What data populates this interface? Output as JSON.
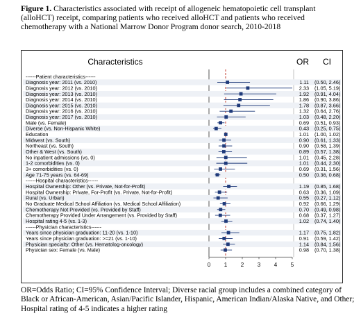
{
  "caption": {
    "label": "Figure 1.",
    "text": "Characteristics associated with receipt of allogeneic hematopoietic cell transplant (alloHCT) receipt, comparing patients who received alloHCT and patients who received chemotherapy with a National Marrow Donor Program donor search, 2010-2018"
  },
  "table_headers": {
    "characteristics": "Characteristics",
    "or": "OR",
    "ci": "CI"
  },
  "footnote": "OR=Odds Ratio; CI=95% Confidence Interval; Diverse racial group includes a combined category of Black or African-American, Asian/Pacific Islander, Hispanic, American Indian/Alaska Native, and Other; Hospital rating of 4-5 indicates a higher rating",
  "colors": {
    "marker": "#1f3a7a",
    "reference_line": "#c0392b",
    "ci_line": "#1f3a7a"
  },
  "chart_data": {
    "type": "forest",
    "reference_value": 1,
    "xlim": [
      0,
      5
    ],
    "x_ticks": [
      "0",
      "1",
      "2",
      "3",
      "4",
      "5"
    ],
    "rows": [
      {
        "label": "------Patient characteristics------",
        "header": true
      },
      {
        "label": "Diagnosis year: 2011 (vs. 2010)",
        "or": 1.11,
        "lo": 0.5,
        "hi": 2.46,
        "or_text": "1.11",
        "ci_text": "(0.50, 2.46)"
      },
      {
        "label": "Diagnosis year: 2012 (vs. 2010)",
        "or": 2.33,
        "lo": 1.05,
        "hi": 5.19,
        "or_text": "2.33",
        "ci_text": "(1.05, 5.19)"
      },
      {
        "label": "Diagnosis year: 2013 (vs. 2010)",
        "or": 1.92,
        "lo": 0.91,
        "hi": 4.04,
        "or_text": "1.92",
        "ci_text": "(0.91, 4.04)"
      },
      {
        "label": "Diagnosis year: 2014 (vs. 2010)",
        "or": 1.86,
        "lo": 0.9,
        "hi": 3.86,
        "or_text": "1.86",
        "ci_text": "(0.90, 3.86)"
      },
      {
        "label": "Diagnosis year: 2015 (vs. 2010)",
        "or": 1.78,
        "lo": 0.87,
        "hi": 3.66,
        "or_text": "1.78",
        "ci_text": "(0.87, 3.66)"
      },
      {
        "label": "Diagnosis year: 2016 (vs. 2010)",
        "or": 1.32,
        "lo": 0.64,
        "hi": 2.76,
        "or_text": "1.32",
        "ci_text": "(0.64, 2.76)"
      },
      {
        "label": "Diagnosis year: 2017 (vs. 2010)",
        "or": 1.03,
        "lo": 0.48,
        "hi": 2.2,
        "or_text": "1.03",
        "ci_text": "(0.48, 2.20)"
      },
      {
        "label": "Male (vs. Female)",
        "or": 0.69,
        "lo": 0.51,
        "hi": 0.93,
        "or_text": "0.69",
        "ci_text": "(0.51, 0.93)"
      },
      {
        "label": "Diverse (vs. Non-Hispanic White)",
        "or": 0.43,
        "lo": 0.25,
        "hi": 0.75,
        "or_text": "0.43",
        "ci_text": "(0.25, 0.75)"
      },
      {
        "label": "Education",
        "or": 1.01,
        "lo": 1.0,
        "hi": 1.02,
        "or_text": "1.01",
        "ci_text": "(1.00, 1.02)"
      },
      {
        "label": "Midwest (vs. South)",
        "or": 0.9,
        "lo": 0.61,
        "hi": 1.33,
        "or_text": "0.90",
        "ci_text": "(0.61, 1.33)"
      },
      {
        "label": "Northeast (vs. South)",
        "or": 0.9,
        "lo": 0.58,
        "hi": 1.39,
        "or_text": "0.90",
        "ci_text": "(0.58, 1.39)"
      },
      {
        "label": "Other & West (vs. South)",
        "or": 0.89,
        "lo": 0.57,
        "hi": 1.38,
        "or_text": "0.89",
        "ci_text": "(0.57, 1.38)"
      },
      {
        "label": "No inpatient admissions (vs. 0)",
        "or": 1.01,
        "lo": 0.45,
        "hi": 2.28,
        "or_text": "1.01",
        "ci_text": "(0.45, 2.28)"
      },
      {
        "label": "1-2 comorbidities (vs. 0)",
        "or": 1.01,
        "lo": 0.44,
        "hi": 2.3,
        "or_text": "1.01",
        "ci_text": "(0.44, 2.30)"
      },
      {
        "label": "3+ comorbidities (vs. 0)",
        "or": 0.69,
        "lo": 0.31,
        "hi": 1.56,
        "or_text": "0.69",
        "ci_text": "(0.31, 1.56)"
      },
      {
        "label": "Age 71-75 years (vs. 64-69)",
        "or": 0.5,
        "lo": 0.36,
        "hi": 0.68,
        "or_text": "0.50",
        "ci_text": "(0.36, 0.68)"
      },
      {
        "label": "------Hospital characteristics------",
        "header": true
      },
      {
        "label": "Hospital Ownership: Other (vs. Private, Not-for-Profit)",
        "or": 1.19,
        "lo": 0.85,
        "hi": 1.68,
        "or_text": "1.19",
        "ci_text": "(0.85, 1.68)"
      },
      {
        "label": "Hospital Ownership: Private, For-Profit (vs. Private, Not-for-Profit)",
        "or": 0.63,
        "lo": 0.36,
        "hi": 1.09,
        "or_text": "0.63",
        "ci_text": "(0.36, 1.09)"
      },
      {
        "label": "Rural (vs. Urban)",
        "or": 0.55,
        "lo": 0.27,
        "hi": 1.12,
        "or_text": "0.55",
        "ci_text": "(0.27, 1.12)"
      },
      {
        "label": "No Graduate Medical School Affiliation (vs. Medical School Affiliation)",
        "or": 0.92,
        "lo": 0.66,
        "hi": 1.29,
        "or_text": "0.92",
        "ci_text": "(0.66, 1.29)"
      },
      {
        "label": "Chemotherapy Not Provided (vs. Provided by Staff)",
        "or": 0.7,
        "lo": 0.49,
        "hi": 0.98,
        "or_text": "0.70",
        "ci_text": "(0.49, 0.98)"
      },
      {
        "label": "Chemotherapy Provided Under Arrangement (vs. Provided by Staff)",
        "or": 0.68,
        "lo": 0.37,
        "hi": 1.27,
        "or_text": "0.68",
        "ci_text": "(0.37, 1.27)"
      },
      {
        "label": "Hospital rating 4-5 (vs. 1-3)",
        "or": 1.02,
        "lo": 0.74,
        "hi": 1.4,
        "or_text": "1.02",
        "ci_text": "(0.74, 1.40)"
      },
      {
        "label": "------Physician characteristics------",
        "header": true
      },
      {
        "label": "Years since physician graduation: 11-20 (vs. 1-10)",
        "or": 1.17,
        "lo": 0.75,
        "hi": 1.82,
        "or_text": "1.17",
        "ci_text": "(0.75, 1.82)"
      },
      {
        "label": "Years since physician graduation: >=21 (vs. 1-10)",
        "or": 0.91,
        "lo": 0.59,
        "hi": 1.42,
        "or_text": "0.91",
        "ci_text": "(0.59, 1.42)"
      },
      {
        "label": "Physician specialty: Other (vs. Hematolog-oncology)",
        "or": 1.14,
        "lo": 0.84,
        "hi": 1.56,
        "or_text": "1.14",
        "ci_text": "(0.84, 1.56)"
      },
      {
        "label": "Physician sex: Female (vs. Male)",
        "or": 0.98,
        "lo": 0.7,
        "hi": 1.38,
        "or_text": "0.98",
        "ci_text": "(0.70, 1.38)"
      }
    ]
  }
}
